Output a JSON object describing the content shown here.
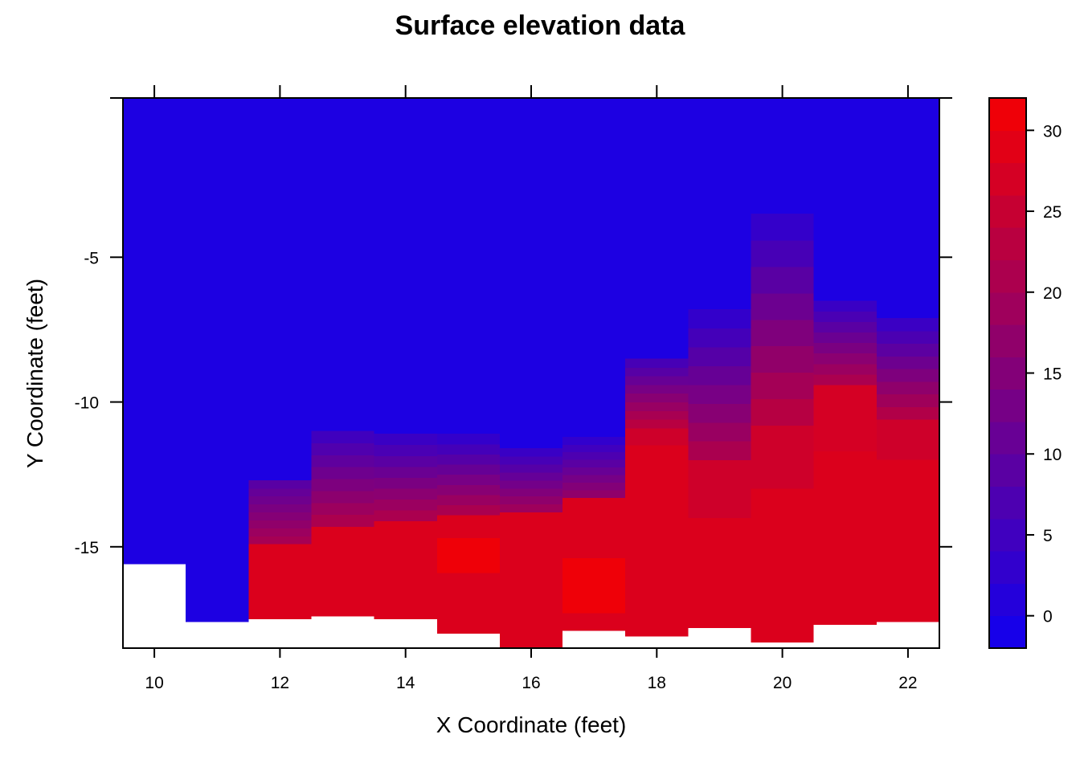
{
  "chart_data": {
    "type": "heatmap",
    "title": "Surface elevation data",
    "xlabel": "X Coordinate (feet)",
    "ylabel": "Y Coordinate (feet)",
    "xlim": [
      9.5,
      22.5
    ],
    "ylim": [
      -18.5,
      0.5
    ],
    "x_ticks": [
      10,
      12,
      14,
      16,
      18,
      20,
      22
    ],
    "y_ticks": [
      -5,
      -10,
      -15
    ],
    "colorbar": {
      "min": -2,
      "max": 32,
      "ticks": [
        0,
        5,
        10,
        15,
        20,
        25,
        30
      ],
      "low_color": "#0000ff",
      "high_color": "#ff0000"
    },
    "columns": [
      {
        "x": 10,
        "bottom": -15.6,
        "segments": [
          {
            "y0": -15.6,
            "y1": 0.5,
            "value": 0
          }
        ]
      },
      {
        "x": 11,
        "bottom": -17.6,
        "segments": [
          {
            "y0": -17.6,
            "y1": 0.5,
            "value": 0
          }
        ]
      },
      {
        "x": 12,
        "bottom": -17.5,
        "segments": [
          {
            "y0": -17.5,
            "y1": -14.9,
            "value": 28
          },
          {
            "y0": -14.9,
            "y1": -12.7,
            "value": 8,
            "v1": 21
          },
          {
            "y0": -12.7,
            "y1": 0.5,
            "value": 0
          }
        ]
      },
      {
        "x": 13,
        "bottom": -17.4,
        "segments": [
          {
            "y0": -17.4,
            "y1": -14.3,
            "value": 28
          },
          {
            "y0": -14.3,
            "y1": -11.0,
            "value": 4,
            "v1": 22
          },
          {
            "y0": -11.0,
            "y1": 0.5,
            "value": 0
          }
        ]
      },
      {
        "x": 14,
        "bottom": -17.5,
        "segments": [
          {
            "y0": -17.5,
            "y1": -14.1,
            "value": 28
          },
          {
            "y0": -14.1,
            "y1": -11.1,
            "value": 3,
            "v1": 22
          },
          {
            "y0": -11.1,
            "y1": 0.5,
            "value": 0
          }
        ]
      },
      {
        "x": 15,
        "bottom": -18.0,
        "segments": [
          {
            "y0": -18.0,
            "y1": -15.9,
            "value": 28
          },
          {
            "y0": -15.9,
            "y1": -14.7,
            "value": 31
          },
          {
            "y0": -14.7,
            "y1": -13.9,
            "value": 28
          },
          {
            "y0": -13.9,
            "y1": -11.1,
            "value": 2,
            "v1": 22
          },
          {
            "y0": -11.1,
            "y1": 0.5,
            "value": 0
          }
        ]
      },
      {
        "x": 16,
        "bottom": -18.5,
        "segments": [
          {
            "y0": -18.5,
            "y1": -13.8,
            "value": 28
          },
          {
            "y0": -13.8,
            "y1": -11.6,
            "value": 3,
            "v1": 20
          },
          {
            "y0": -11.6,
            "y1": 0.5,
            "value": 0
          }
        ]
      },
      {
        "x": 17,
        "bottom": -17.9,
        "segments": [
          {
            "y0": -17.9,
            "y1": -17.3,
            "value": 28
          },
          {
            "y0": -17.3,
            "y1": -15.4,
            "value": 31
          },
          {
            "y0": -15.4,
            "y1": -13.3,
            "value": 28
          },
          {
            "y0": -13.3,
            "y1": -11.2,
            "value": 2,
            "v1": 18
          },
          {
            "y0": -11.2,
            "y1": 0.5,
            "value": 0
          }
        ]
      },
      {
        "x": 18,
        "bottom": -18.1,
        "segments": [
          {
            "y0": -18.1,
            "y1": -11.5,
            "value": 28
          },
          {
            "y0": -11.5,
            "y1": -10.9,
            "value": 26
          },
          {
            "y0": -10.9,
            "y1": -8.5,
            "value": 5,
            "v1": 24
          },
          {
            "y0": -8.5,
            "y1": 0.5,
            "value": 0
          }
        ]
      },
      {
        "x": 19,
        "bottom": -17.8,
        "segments": [
          {
            "y0": -17.8,
            "y1": -14.0,
            "value": 28
          },
          {
            "y0": -14.0,
            "y1": -12.0,
            "value": 26
          },
          {
            "y0": -12.0,
            "y1": -6.8,
            "value": 2,
            "v1": 22
          },
          {
            "y0": -6.8,
            "y1": 0.5,
            "value": 0
          }
        ]
      },
      {
        "x": 20,
        "bottom": -18.3,
        "segments": [
          {
            "y0": -18.3,
            "y1": -13.0,
            "value": 28
          },
          {
            "y0": -13.0,
            "y1": -10.8,
            "value": 26
          },
          {
            "y0": -10.8,
            "y1": -3.5,
            "value": 2,
            "v1": 24
          },
          {
            "y0": -3.5,
            "y1": 0.5,
            "value": 0
          }
        ]
      },
      {
        "x": 21,
        "bottom": -17.7,
        "segments": [
          {
            "y0": -17.7,
            "y1": -11.7,
            "value": 28
          },
          {
            "y0": -11.7,
            "y1": -9.4,
            "value": 27
          },
          {
            "y0": -9.4,
            "y1": -6.5,
            "value": 3,
            "v1": 22
          },
          {
            "y0": -6.5,
            "y1": 0.5,
            "value": 0
          }
        ]
      },
      {
        "x": 22,
        "bottom": -17.6,
        "segments": [
          {
            "y0": -17.6,
            "y1": -12.0,
            "value": 28
          },
          {
            "y0": -12.0,
            "y1": -10.6,
            "value": 26
          },
          {
            "y0": -10.6,
            "y1": -7.1,
            "value": 3,
            "v1": 23
          },
          {
            "y0": -7.1,
            "y1": 0.5,
            "value": 0
          }
        ]
      }
    ]
  }
}
